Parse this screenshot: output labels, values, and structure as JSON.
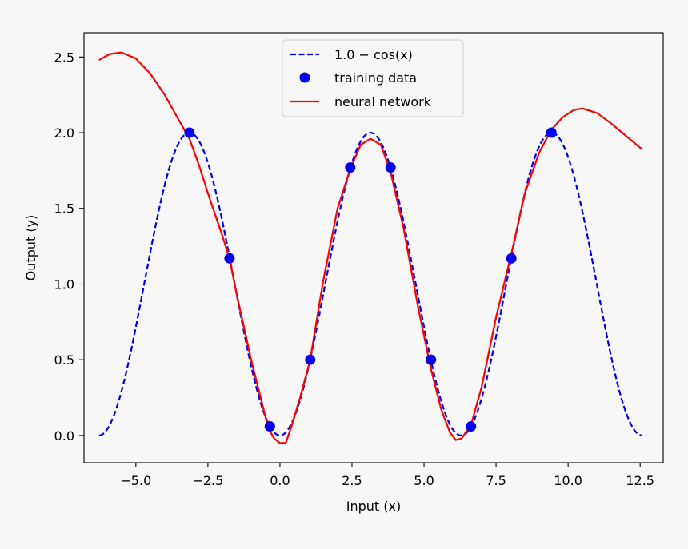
{
  "chart_data": {
    "type": "line",
    "xlabel": "Input (x)",
    "ylabel": "Output (y)",
    "xlim": [
      -6.8,
      13.3
    ],
    "ylim": [
      -0.18,
      2.66
    ],
    "x_ticks": [
      -5.0,
      -2.5,
      0.0,
      2.5,
      5.0,
      7.5,
      10.0,
      12.5
    ],
    "x_tick_labels": [
      "−5.0",
      "−2.5",
      "0.0",
      "2.5",
      "5.0",
      "7.5",
      "10.0",
      "12.5"
    ],
    "y_ticks": [
      0.0,
      0.5,
      1.0,
      1.5,
      2.0,
      2.5
    ],
    "y_tick_labels": [
      "0.0",
      "0.5",
      "1.0",
      "1.5",
      "2.0",
      "2.5"
    ],
    "grid": false,
    "legend_position": "top-center",
    "series": [
      {
        "name": "1.0 − cos(x)",
        "style": "dashed",
        "color": "#0000ee",
        "function": "1 - cos(x)",
        "x_range": [
          -6.28,
          12.57
        ]
      },
      {
        "name": "training data",
        "style": "markers",
        "color": "#0000ee",
        "x": [
          -3.14,
          -1.75,
          -0.35,
          1.05,
          2.44,
          3.84,
          5.24,
          6.63,
          8.03,
          9.42
        ],
        "y": [
          2.0,
          1.17,
          0.06,
          0.5,
          1.77,
          1.77,
          0.5,
          0.06,
          1.17,
          2.0
        ]
      },
      {
        "name": "neural network",
        "style": "solid",
        "color": "#ff0000",
        "x": [
          -6.28,
          -5.9,
          -5.5,
          -5.0,
          -4.5,
          -4.0,
          -3.5,
          -3.14,
          -2.8,
          -2.5,
          -2.0,
          -1.75,
          -1.5,
          -1.0,
          -0.5,
          -0.35,
          -0.2,
          0.0,
          0.2,
          0.4,
          0.7,
          1.05,
          1.5,
          2.0,
          2.44,
          2.8,
          3.14,
          3.5,
          3.84,
          4.3,
          4.8,
          5.24,
          5.6,
          5.9,
          6.1,
          6.3,
          6.63,
          7.0,
          7.5,
          8.03,
          8.5,
          9.0,
          9.42,
          9.8,
          10.2,
          10.5,
          11.0,
          11.5,
          12.0,
          12.57
        ],
        "y": [
          2.48,
          2.52,
          2.53,
          2.49,
          2.39,
          2.25,
          2.08,
          1.96,
          1.78,
          1.6,
          1.32,
          1.17,
          0.93,
          0.5,
          0.12,
          0.03,
          -0.02,
          -0.05,
          -0.05,
          0.06,
          0.25,
          0.5,
          1.02,
          1.5,
          1.76,
          1.92,
          1.96,
          1.92,
          1.74,
          1.36,
          0.84,
          0.44,
          0.17,
          0.02,
          -0.03,
          -0.02,
          0.07,
          0.32,
          0.78,
          1.2,
          1.6,
          1.87,
          2.02,
          2.1,
          2.15,
          2.16,
          2.13,
          2.06,
          1.98,
          1.89
        ]
      }
    ]
  }
}
